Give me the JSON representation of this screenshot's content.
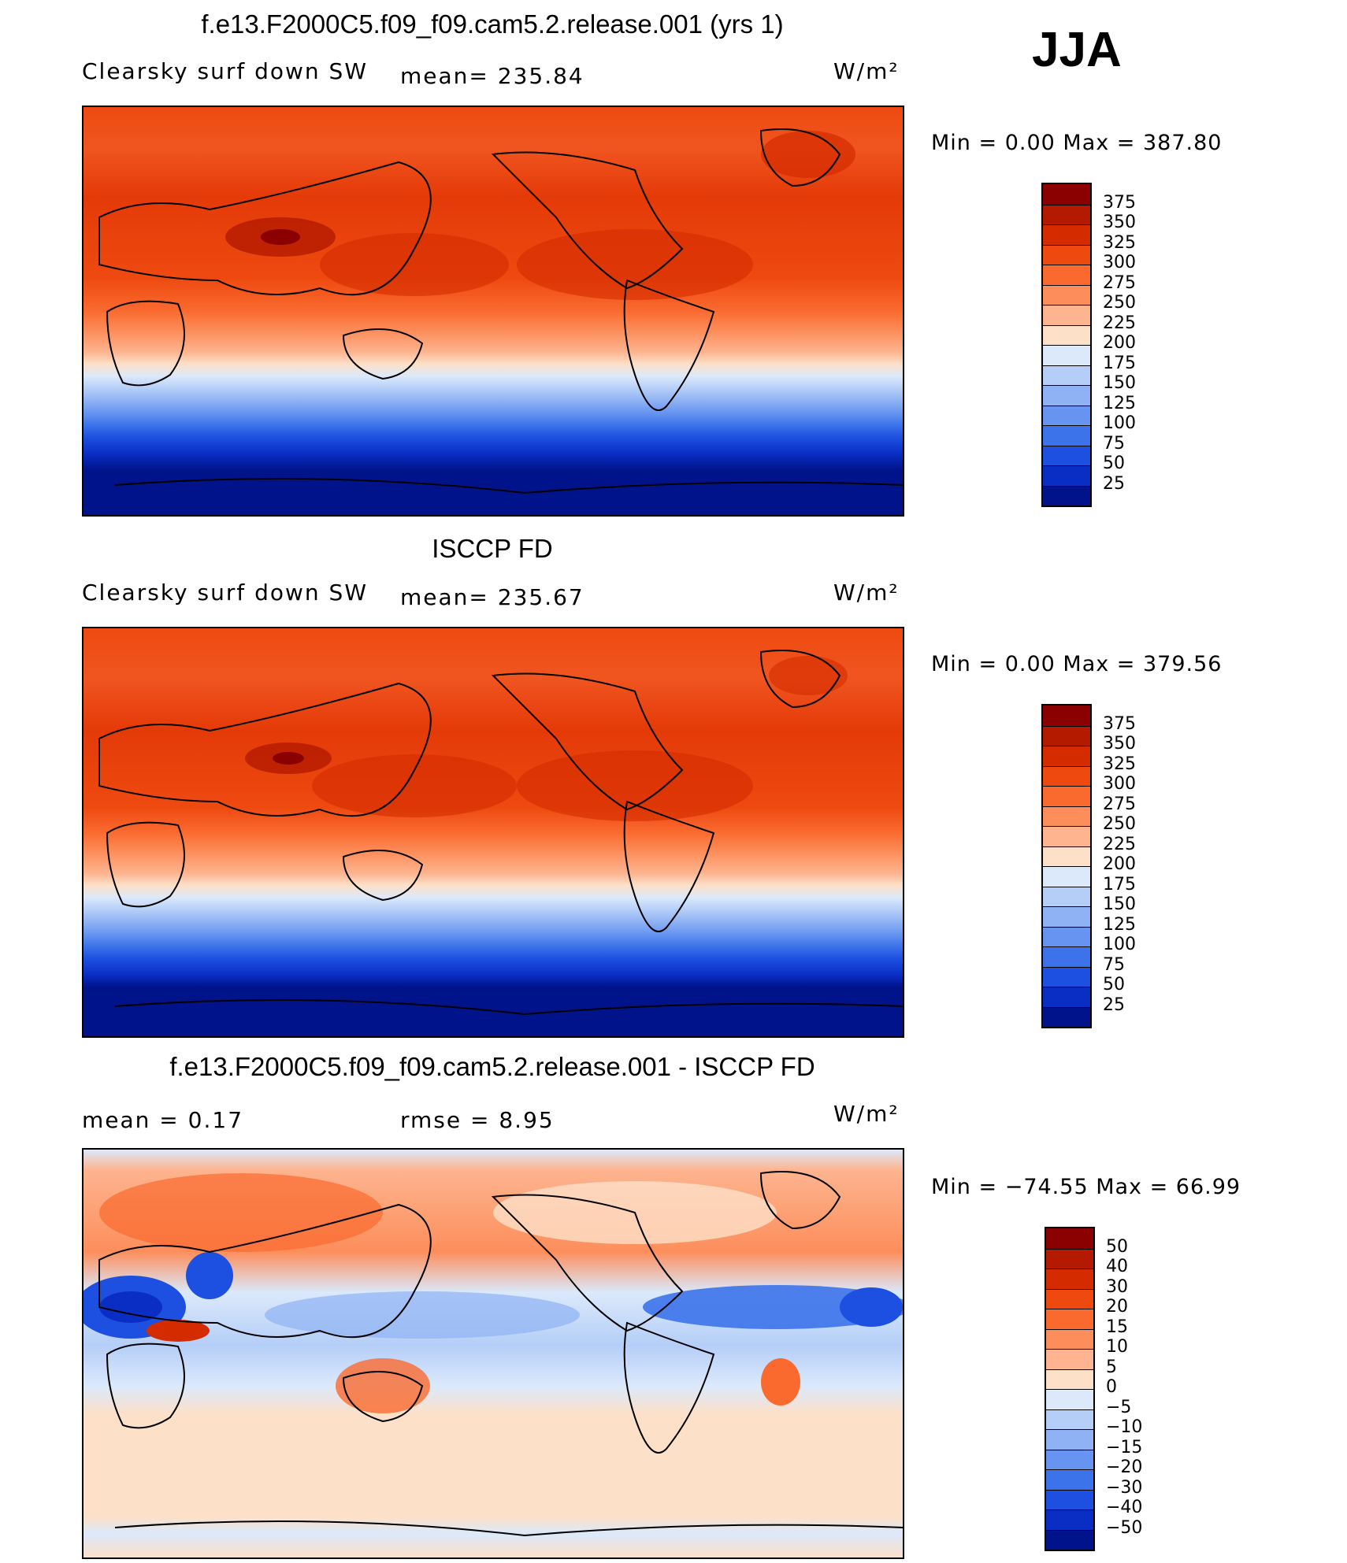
{
  "season": "JJA",
  "panels": [
    {
      "id": "model",
      "title": "f.e13.F2000C5.f09_f09.cam5.2.release.001 (yrs 1)",
      "left_label": "Clearsky surf down SW",
      "stat_label": "mean= 235.84",
      "units": "W/m²",
      "minmax": "Min =    0.00 Max = 387.80",
      "colorbar": {
        "labels": [
          "375",
          "350",
          "325",
          "300",
          "275",
          "250",
          "225",
          "200",
          "175",
          "150",
          "125",
          "100",
          "75",
          "50",
          "25"
        ],
        "colors": [
          "#8b0000",
          "#b31a00",
          "#d42b00",
          "#ee4a10",
          "#fa6a2f",
          "#fd8e5c",
          "#fdb48f",
          "#fde0c8",
          "#dbe9fb",
          "#b5cef8",
          "#8fb2f4",
          "#6694f0",
          "#3c73ea",
          "#1d4fe0",
          "#0a2ec4",
          "#00138a"
        ]
      }
    },
    {
      "id": "obs",
      "title": "ISCCP FD",
      "left_label": "Clearsky surf down SW",
      "stat_label": "mean= 235.67",
      "units": "W/m²",
      "minmax": "Min =    0.00 Max = 379.56",
      "colorbar": {
        "labels": [
          "375",
          "350",
          "325",
          "300",
          "275",
          "250",
          "225",
          "200",
          "175",
          "150",
          "125",
          "100",
          "75",
          "50",
          "25"
        ],
        "colors": [
          "#8b0000",
          "#b31a00",
          "#d42b00",
          "#ee4a10",
          "#fa6a2f",
          "#fd8e5c",
          "#fdb48f",
          "#fde0c8",
          "#dbe9fb",
          "#b5cef8",
          "#8fb2f4",
          "#6694f0",
          "#3c73ea",
          "#1d4fe0",
          "#0a2ec4",
          "#00138a"
        ]
      }
    },
    {
      "id": "diff",
      "title": "f.e13.F2000C5.f09_f09.cam5.2.release.001 - ISCCP FD",
      "left_label": "mean =    0.17",
      "stat_label": "rmse =    8.95",
      "units": "W/m²",
      "minmax": "Min = −74.55 Max =   66.99",
      "colorbar": {
        "labels": [
          "50",
          "40",
          "30",
          "20",
          "15",
          "10",
          "5",
          "0",
          "−5",
          "−10",
          "−15",
          "−20",
          "−30",
          "−40",
          "−50"
        ],
        "colors": [
          "#8b0000",
          "#b31a00",
          "#d42b00",
          "#ee4a10",
          "#fa6a2f",
          "#fd8e5c",
          "#fdb48f",
          "#fde0c8",
          "#dbe9fb",
          "#b5cef8",
          "#8fb2f4",
          "#6694f0",
          "#3c73ea",
          "#1d4fe0",
          "#0a2ec4",
          "#00138a"
        ]
      }
    }
  ]
}
